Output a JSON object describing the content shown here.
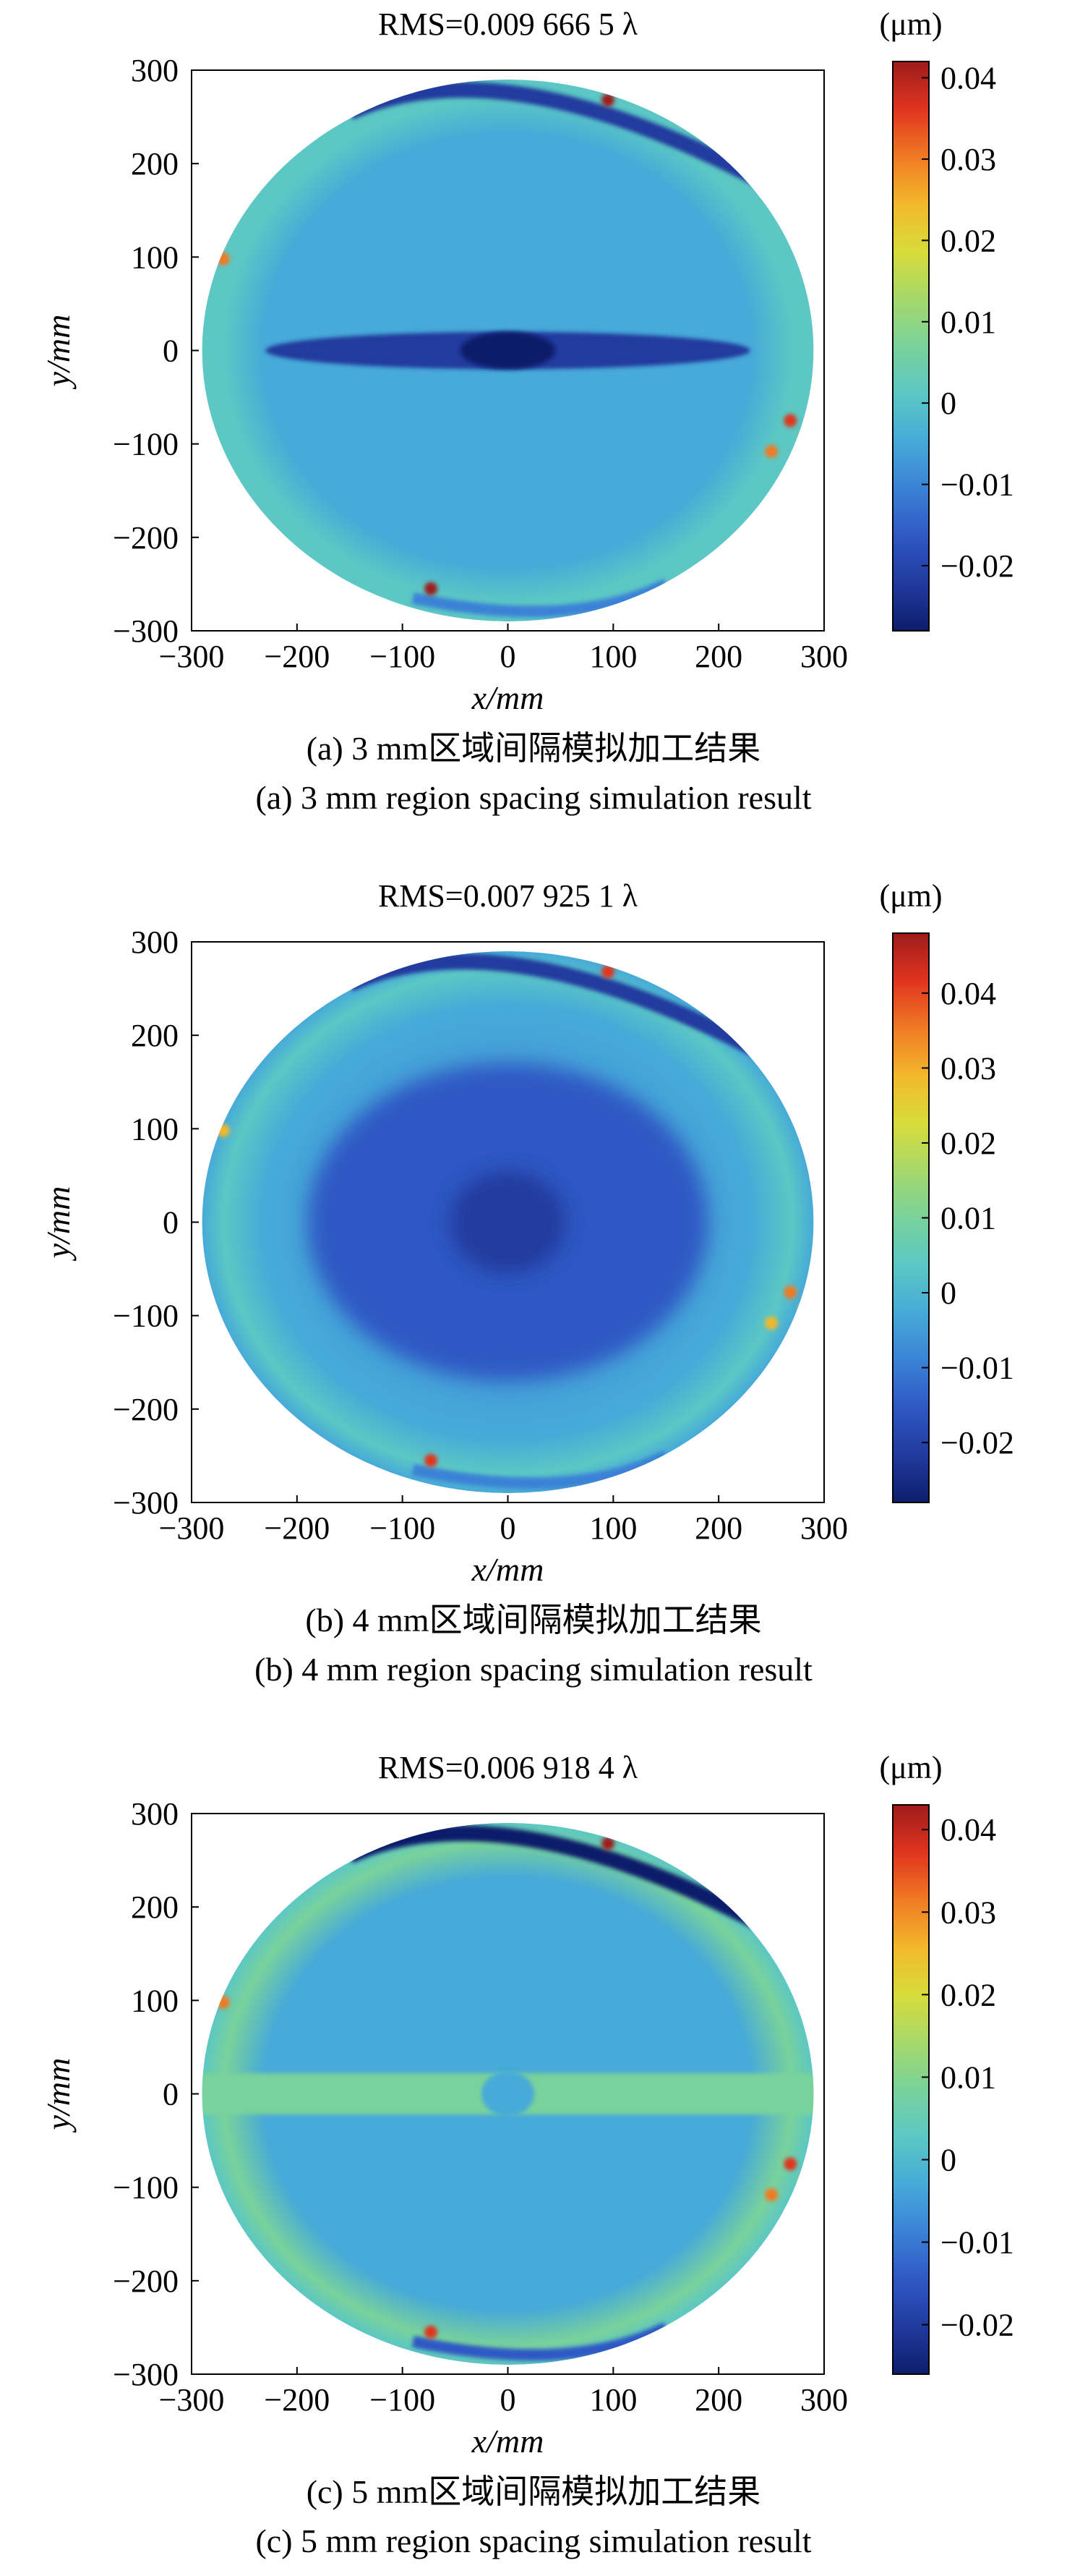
{
  "colormap": [
    "#0c1e6b",
    "#213a9e",
    "#2f58c4",
    "#3b82d6",
    "#47aad8",
    "#5cc7c4",
    "#79d29b",
    "#a6d86a",
    "#d8dc3a",
    "#f3b82c",
    "#f07a24",
    "#e0341f",
    "#9e1b1b"
  ],
  "chart_data": [
    {
      "type": "heatmap",
      "panel": "a",
      "title": "RMS=0.009 666 5 λ",
      "unit_label": "(μm)",
      "xlabel": "x/mm",
      "ylabel": "y/mm",
      "xlim": [
        -300,
        300
      ],
      "ylim": [
        -300,
        300
      ],
      "x_ticks": [
        -300,
        -200,
        -100,
        0,
        100,
        200,
        300
      ],
      "y_ticks": [
        300,
        200,
        100,
        0,
        -100,
        -200,
        -300
      ],
      "x_tick_labels": [
        "−300",
        "−200",
        "−100",
        "0",
        "100",
        "200",
        "300"
      ],
      "y_tick_labels": [
        "300",
        "200",
        "100",
        "0",
        "−100",
        "−200",
        "−300"
      ],
      "colorbar_range": [
        -0.028,
        0.042
      ],
      "colorbar_ticks": [
        0.04,
        0.03,
        0.02,
        0.01,
        0,
        -0.01,
        -0.02
      ],
      "colorbar_tick_labels": [
        "0.04",
        "0.03",
        "0.02",
        "0.01",
        "0",
        "−0.01",
        "−0.02"
      ],
      "base_value": -0.005,
      "feature": "band-dark",
      "caption_cn": "(a) 3 mm区域间隔模拟加工结果",
      "caption_en": "(a) 3 mm region spacing simulation result"
    },
    {
      "type": "heatmap",
      "panel": "b",
      "title": "RMS=0.007 925 1 λ",
      "unit_label": "(μm)",
      "xlabel": "x/mm",
      "ylabel": "y/mm",
      "xlim": [
        -300,
        300
      ],
      "ylim": [
        -300,
        300
      ],
      "x_ticks": [
        -300,
        -200,
        -100,
        0,
        100,
        200,
        300
      ],
      "y_ticks": [
        300,
        200,
        100,
        0,
        -100,
        -200,
        -300
      ],
      "x_tick_labels": [
        "−300",
        "−200",
        "−100",
        "0",
        "100",
        "200",
        "300"
      ],
      "y_tick_labels": [
        "300",
        "200",
        "100",
        "0",
        "−100",
        "−200",
        "−300"
      ],
      "colorbar_range": [
        -0.028,
        0.048
      ],
      "colorbar_ticks": [
        0.04,
        0.03,
        0.02,
        0.01,
        0,
        -0.01,
        -0.02
      ],
      "colorbar_tick_labels": [
        "0.04",
        "0.03",
        "0.02",
        "0.01",
        "0",
        "−0.01",
        "−0.02"
      ],
      "base_value": -0.006,
      "feature": "center-dark",
      "caption_cn": "(b) 4 mm区域间隔模拟加工结果",
      "caption_en": "(b) 4 mm region spacing simulation result"
    },
    {
      "type": "heatmap",
      "panel": "c",
      "title": "RMS=0.006 918 4 λ",
      "unit_label": "(μm)",
      "xlabel": "x/mm",
      "ylabel": "y/mm",
      "xlim": [
        -300,
        300
      ],
      "ylim": [
        -300,
        300
      ],
      "x_ticks": [
        -300,
        -200,
        -100,
        0,
        100,
        200,
        300
      ],
      "y_ticks": [
        300,
        200,
        100,
        0,
        -100,
        -200,
        -300
      ],
      "x_tick_labels": [
        "−300",
        "−200",
        "−100",
        "0",
        "100",
        "200",
        "300"
      ],
      "y_tick_labels": [
        "300",
        "200",
        "100",
        "0",
        "−100",
        "−200",
        "−300"
      ],
      "colorbar_range": [
        -0.026,
        0.043
      ],
      "colorbar_ticks": [
        0.04,
        0.03,
        0.02,
        0.01,
        0,
        -0.01,
        -0.02
      ],
      "colorbar_tick_labels": [
        "0.04",
        "0.03",
        "0.02",
        "0.01",
        "0",
        "−0.01",
        "−0.02"
      ],
      "base_value": -0.002,
      "feature": "band-light",
      "caption_cn": "(c) 5 mm区域间隔模拟加工结果",
      "caption_en": "(c) 5 mm region spacing simulation result"
    }
  ]
}
